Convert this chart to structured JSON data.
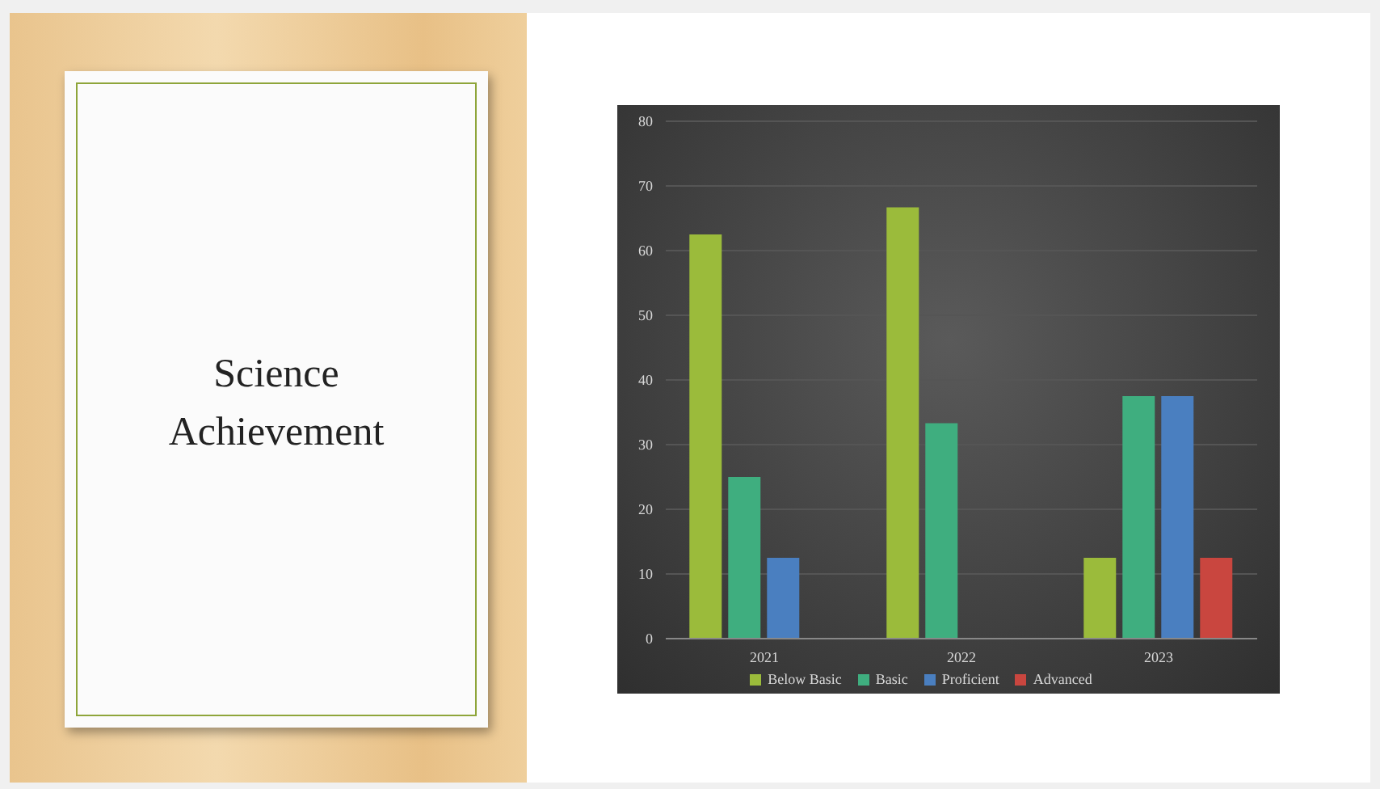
{
  "chart_data": {
    "type": "bar",
    "title": "Science Achievement",
    "categories": [
      "2021",
      "2022",
      "2023"
    ],
    "series": [
      {
        "name": "Below Basic",
        "color": "#9bbb3b",
        "values": [
          62.5,
          66.7,
          12.5
        ]
      },
      {
        "name": "Basic",
        "color": "#3fae7f",
        "values": [
          25,
          33.3,
          37.5
        ]
      },
      {
        "name": "Proficient",
        "color": "#4a7fc0",
        "values": [
          12.5,
          0,
          37.5
        ]
      },
      {
        "name": "Advanced",
        "color": "#c9463f",
        "values": [
          0,
          0,
          12.5
        ]
      }
    ],
    "ylim": [
      0,
      80
    ],
    "yticks": [
      0,
      10,
      20,
      30,
      40,
      50,
      60,
      70,
      80
    ],
    "grid": "y",
    "legend": "bottom"
  }
}
